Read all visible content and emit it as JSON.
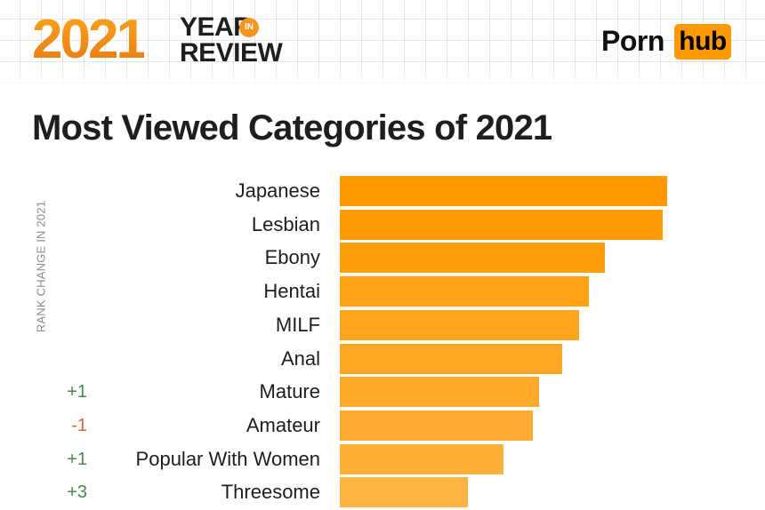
{
  "header": {
    "year": "2021",
    "year_word": "YEAR",
    "in_badge": "IN",
    "review_word": "REVIEW",
    "logo_left": "Porn",
    "logo_right": "hub"
  },
  "side_label": "RANK CHANGE IN 2021",
  "colors": {
    "bar_top": "#ff9900",
    "bar_bottom": "#ffb340",
    "positive": "#4a8a4a",
    "negative": "#e0603a",
    "brand": "#ff9900"
  },
  "chart_data": {
    "type": "bar",
    "orientation": "horizontal",
    "title": "Most Viewed Categories of 2021",
    "categories": [
      "Japanese",
      "Lesbian",
      "Ebony",
      "Hentai",
      "MILF",
      "Anal",
      "Mature",
      "Amateur",
      "Popular With Women",
      "Threesome"
    ],
    "values": [
      100,
      98.6,
      81,
      76,
      73,
      68,
      61,
      59,
      50,
      39
    ],
    "rank_changes": [
      "",
      "",
      "",
      "",
      "",
      "",
      "+1",
      "-1",
      "+1",
      "+3"
    ],
    "xlim": [
      0,
      100
    ],
    "grid": false,
    "legend": "none"
  }
}
